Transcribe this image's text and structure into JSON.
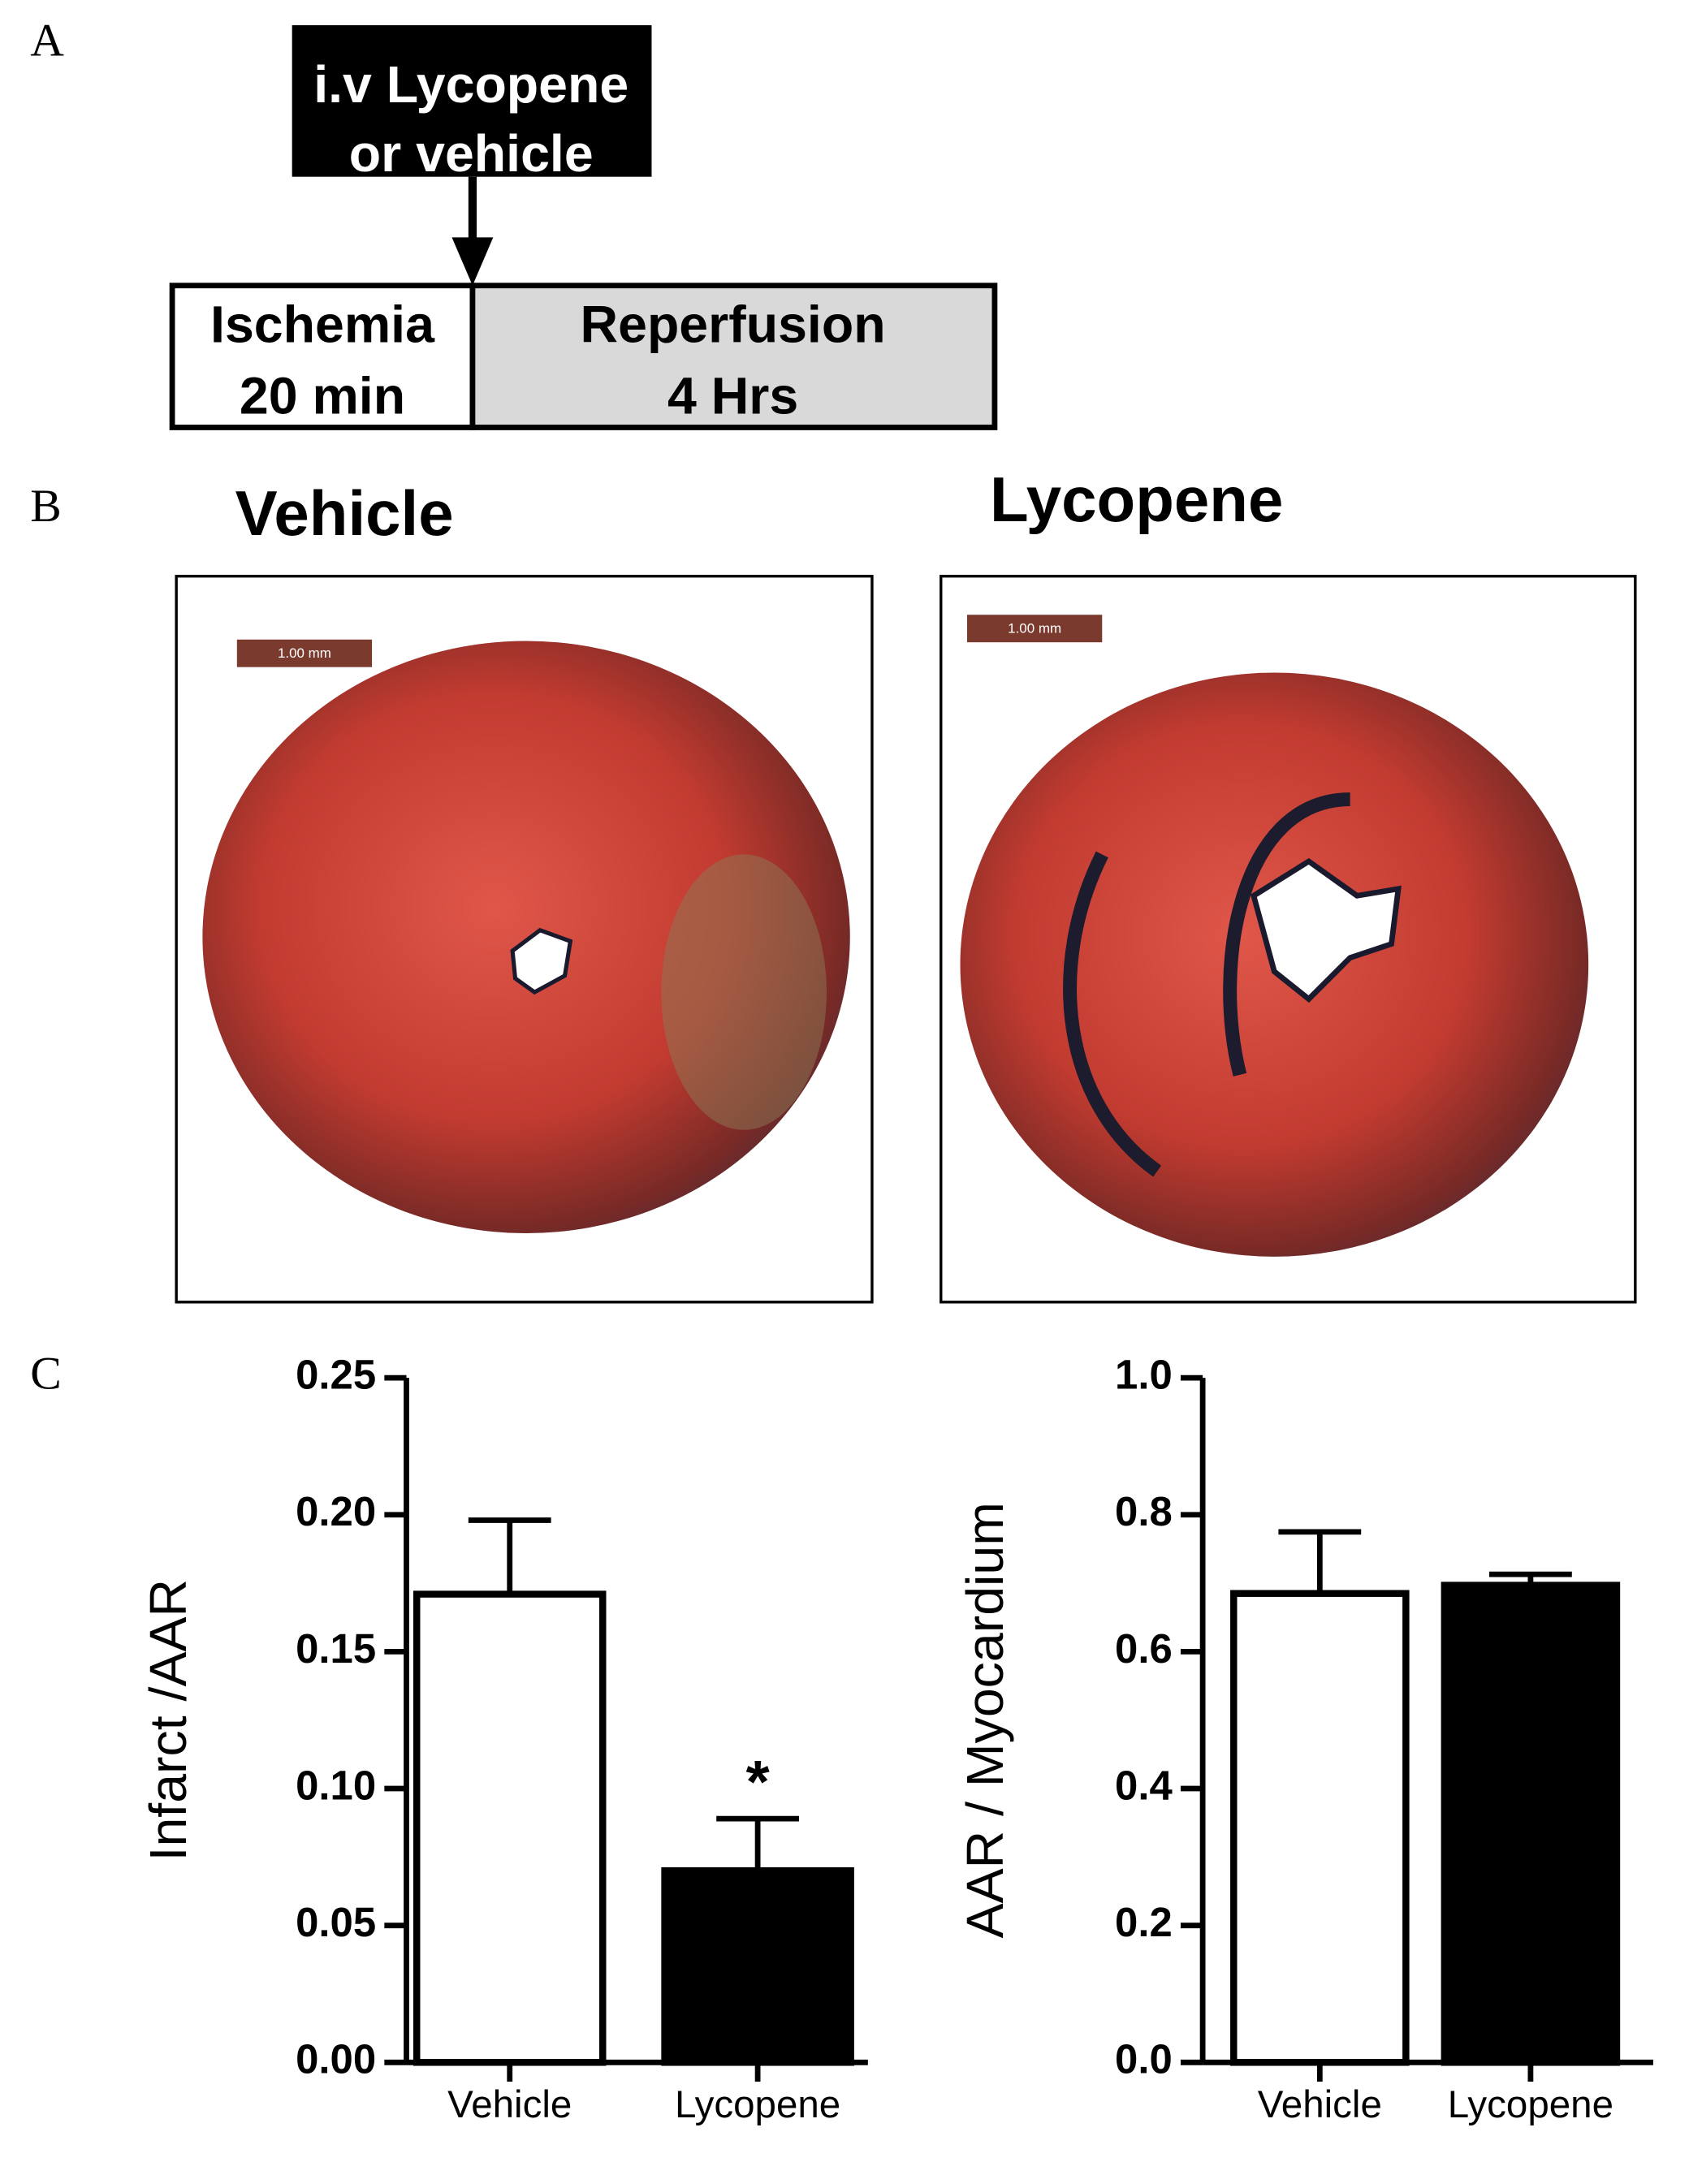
{
  "panel_labels": [
    "A",
    "B",
    "C"
  ],
  "protocol": {
    "treatment": [
      "i.v Lycopene",
      "or vehicle"
    ],
    "ischemia": [
      "Ischemia",
      "20 min"
    ],
    "reperfusion": [
      "Reperfusion",
      "4 Hrs"
    ]
  },
  "images": [
    {
      "title": "Vehicle",
      "scale_bar": "1.00 mm"
    },
    {
      "title": "Lycopene",
      "scale_bar": "1.00 mm"
    }
  ],
  "chart_data": [
    {
      "type": "bar",
      "ylabel": "Infarct /AAR",
      "categories": [
        "Vehicle",
        "Lycopene"
      ],
      "values": [
        0.171,
        0.07
      ],
      "errors": [
        0.027,
        0.019
      ],
      "colors": [
        "#ffffff",
        "#000000"
      ],
      "annotation": "*",
      "ylim": [
        0,
        0.25
      ],
      "yticks": [
        {
          "value": 0,
          "label": "0.00"
        },
        0.05,
        {
          "value": 0.1,
          "label": "0.10"
        },
        0.15,
        {
          "value": 0.2,
          "label": "0.20"
        },
        0.25
      ]
    },
    {
      "type": "bar",
      "ylabel": "AAR / Myocardium",
      "categories": [
        "Vehicle",
        "Lycopene"
      ],
      "values": [
        0.685,
        0.697
      ],
      "errors": [
        0.09,
        0.016
      ],
      "colors": [
        "#ffffff",
        "#000000"
      ],
      "ylim": [
        0,
        1
      ],
      "yticks": [
        {
          "value": 0,
          "label": "0.0"
        },
        0.2,
        0.4,
        0.6,
        0.8,
        {
          "value": 1,
          "label": "1.0"
        }
      ]
    }
  ]
}
